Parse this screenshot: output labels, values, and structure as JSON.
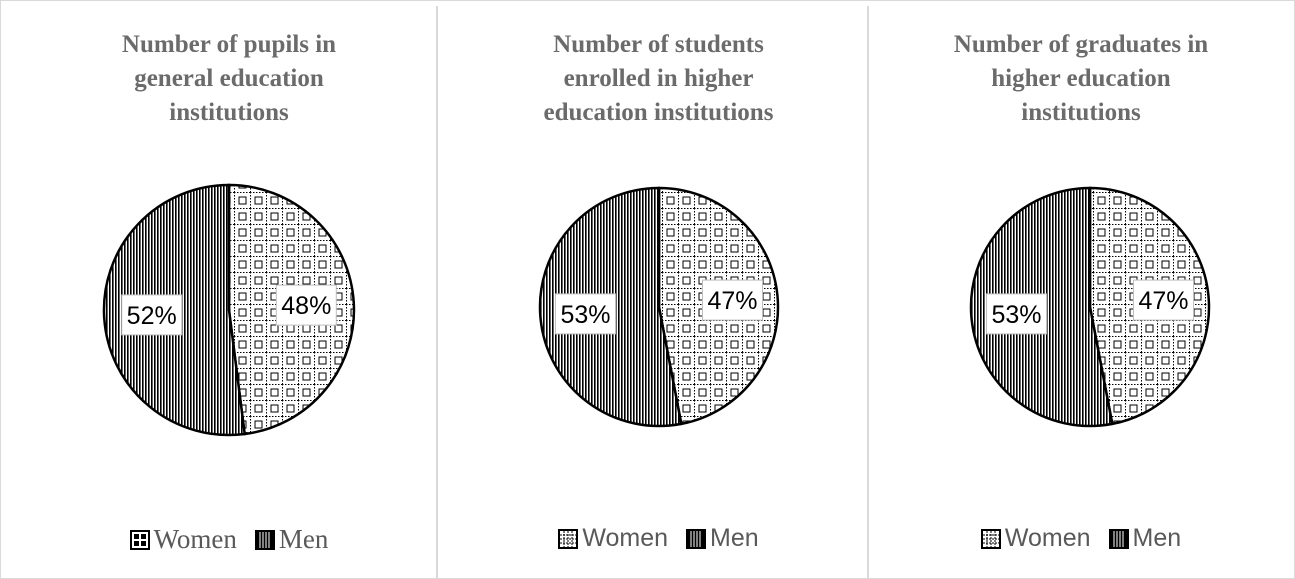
{
  "chart_data": [
    {
      "type": "pie",
      "title": "Number of pupils in\ngeneral education\ninstitutions",
      "slices": [
        {
          "label": "Women",
          "value": 48,
          "pattern": "grid"
        },
        {
          "label": "Men",
          "value": 52,
          "pattern": "vlines"
        }
      ],
      "data_labels": [
        "48%",
        "52%"
      ],
      "legend": [
        "Women",
        "Men"
      ],
      "legend_position": "bottom"
    },
    {
      "type": "pie",
      "title": "Number of students\nenrolled in higher\neducation institutions",
      "slices": [
        {
          "label": "Women",
          "value": 47,
          "pattern": "grid"
        },
        {
          "label": "Men",
          "value": 53,
          "pattern": "vlines"
        }
      ],
      "data_labels": [
        "47%",
        "53%"
      ],
      "legend": [
        "Women",
        "Men"
      ],
      "legend_position": "bottom"
    },
    {
      "type": "pie",
      "title": "Number of graduates in\nhigher education\ninstitutions",
      "slices": [
        {
          "label": "Women",
          "value": 47,
          "pattern": "grid"
        },
        {
          "label": "Men",
          "value": 53,
          "pattern": "vlines"
        }
      ],
      "data_labels": [
        "47%",
        "53%"
      ],
      "legend": [
        "Women",
        "Men"
      ],
      "legend_position": "bottom"
    }
  ],
  "colors": {
    "stroke": "#000000",
    "title": "#6b6b6b",
    "legend_text": "#595959",
    "border": "#d9d9d9"
  }
}
